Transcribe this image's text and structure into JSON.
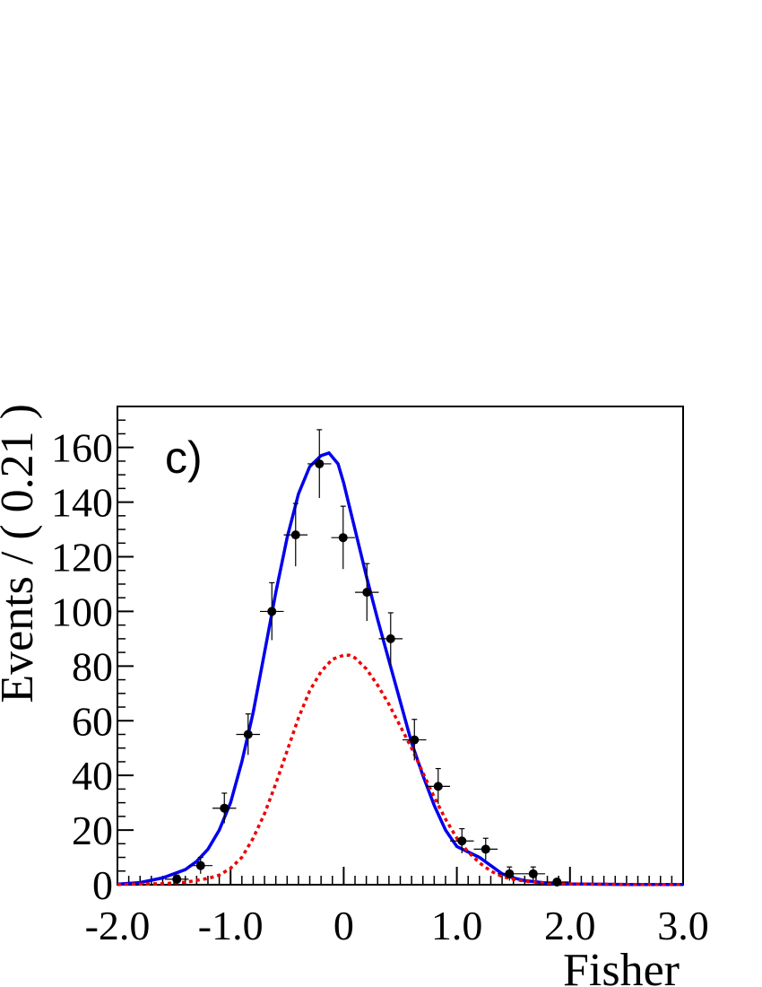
{
  "chart_data": {
    "type": "scatter",
    "panel_label": "c)",
    "xlabel": "Fisher",
    "ylabel": "Events / ( 0.21 )",
    "xlim": [
      -2.0,
      3.0
    ],
    "ylim": [
      0,
      175
    ],
    "x_tick_labels": [
      "-2.0",
      "-1.0",
      "0",
      "1.0",
      "2.0",
      "3.0"
    ],
    "x_ticks": [
      -2.0,
      -1.0,
      0,
      1.0,
      2.0,
      3.0
    ],
    "y_ticks": [
      0,
      20,
      40,
      60,
      80,
      100,
      120,
      140,
      160
    ],
    "y_tick_labels": [
      "0",
      "20",
      "40",
      "60",
      "80",
      "100",
      "120",
      "140",
      "160"
    ],
    "bin_width": 0.21,
    "series": [
      {
        "kind": "points",
        "color": "#000000",
        "x": [
          -1.475,
          -1.265,
          -1.055,
          -0.845,
          -0.635,
          -0.425,
          -0.215,
          -0.005,
          0.205,
          0.415,
          0.625,
          0.835,
          1.045,
          1.255,
          1.465,
          1.675,
          1.885
        ],
        "y": [
          2,
          7,
          28,
          55,
          100,
          128,
          154,
          127,
          107,
          90,
          53,
          36,
          16,
          13,
          4,
          4,
          1
        ],
        "yerr": [
          1.5,
          3,
          5.5,
          7.5,
          10.5,
          11.5,
          12.5,
          11.5,
          10.5,
          9.5,
          7.5,
          6.5,
          4.5,
          4,
          2.5,
          2.5,
          1
        ]
      },
      {
        "kind": "curve",
        "style": "solid",
        "color": "#0000ee",
        "x": [
          -2.0,
          -1.8,
          -1.6,
          -1.4,
          -1.3,
          -1.2,
          -1.1,
          -1.0,
          -0.9,
          -0.8,
          -0.7,
          -0.6,
          -0.5,
          -0.4,
          -0.3,
          -0.2,
          -0.13,
          -0.05,
          0.0,
          0.1,
          0.2,
          0.3,
          0.4,
          0.5,
          0.6,
          0.7,
          0.8,
          0.9,
          1.0,
          1.1,
          1.2,
          1.3,
          1.4,
          1.5,
          1.6,
          1.8,
          2.0,
          2.5,
          3.0
        ],
        "y": [
          0.2,
          0.8,
          2.5,
          5.5,
          8.5,
          13,
          20,
          30,
          45,
          63,
          85,
          107,
          127,
          143,
          153,
          157,
          158,
          154,
          147,
          130,
          113,
          97,
          82,
          67,
          52,
          40,
          29,
          20,
          14,
          12,
          10,
          7,
          4,
          2.5,
          1.5,
          0.6,
          0.3,
          0.1,
          0.05
        ]
      },
      {
        "kind": "curve",
        "style": "dashed",
        "color": "#ee0000",
        "x": [
          -2.0,
          -1.6,
          -1.4,
          -1.2,
          -1.1,
          -1.0,
          -0.9,
          -0.8,
          -0.7,
          -0.6,
          -0.5,
          -0.4,
          -0.3,
          -0.2,
          -0.1,
          0.0,
          0.05,
          0.1,
          0.2,
          0.3,
          0.4,
          0.5,
          0.6,
          0.7,
          0.8,
          0.9,
          1.0,
          1.1,
          1.2,
          1.3,
          1.4,
          1.5,
          1.6,
          1.8,
          2.0,
          2.5,
          3.0
        ],
        "y": [
          0.1,
          0.4,
          0.9,
          2.3,
          3.5,
          6,
          10,
          17,
          26,
          37,
          49,
          61,
          71,
          78,
          82.5,
          84,
          84,
          83,
          79,
          73,
          66,
          58,
          50,
          41,
          32,
          24,
          17,
          12,
          8,
          5,
          3,
          2,
          1.3,
          0.6,
          0.3,
          0.1,
          0.05
        ]
      }
    ]
  }
}
